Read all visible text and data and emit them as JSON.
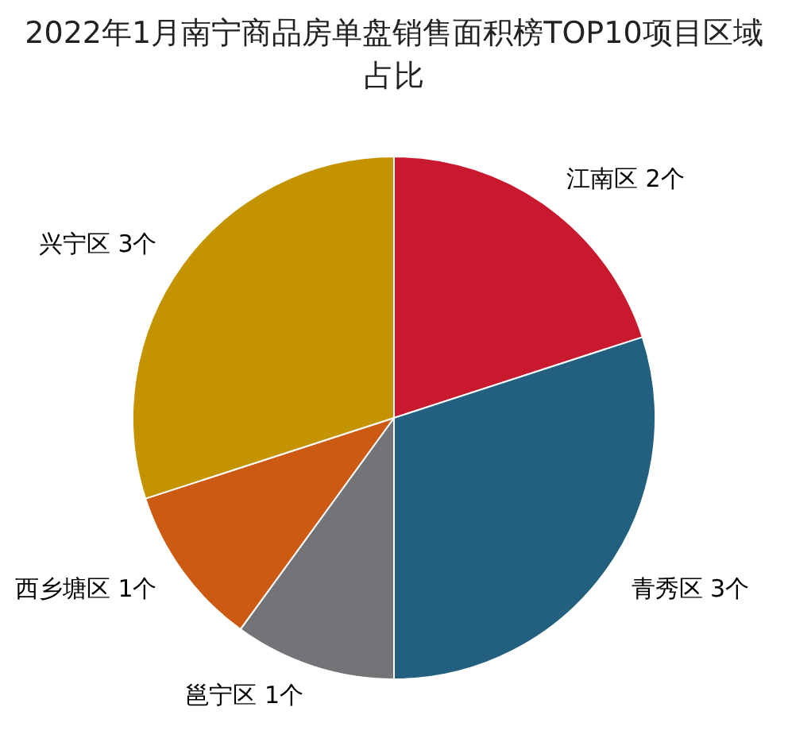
{
  "chart_data": {
    "type": "pie",
    "title": "2022年1月南宁商品房单盘销售面积榜TOP10项目区域占比",
    "categories": [
      "江南区",
      "青秀区",
      "邕宁区",
      "西乡塘区",
      "兴宁区"
    ],
    "values": [
      2,
      3,
      1,
      1,
      3
    ],
    "value_labels": [
      "2个",
      "3个",
      "1个",
      "1个",
      "3个"
    ],
    "colors": [
      "#c8192e",
      "#23607f",
      "#737477",
      "#cc5a12",
      "#c49400"
    ],
    "legend": false
  }
}
